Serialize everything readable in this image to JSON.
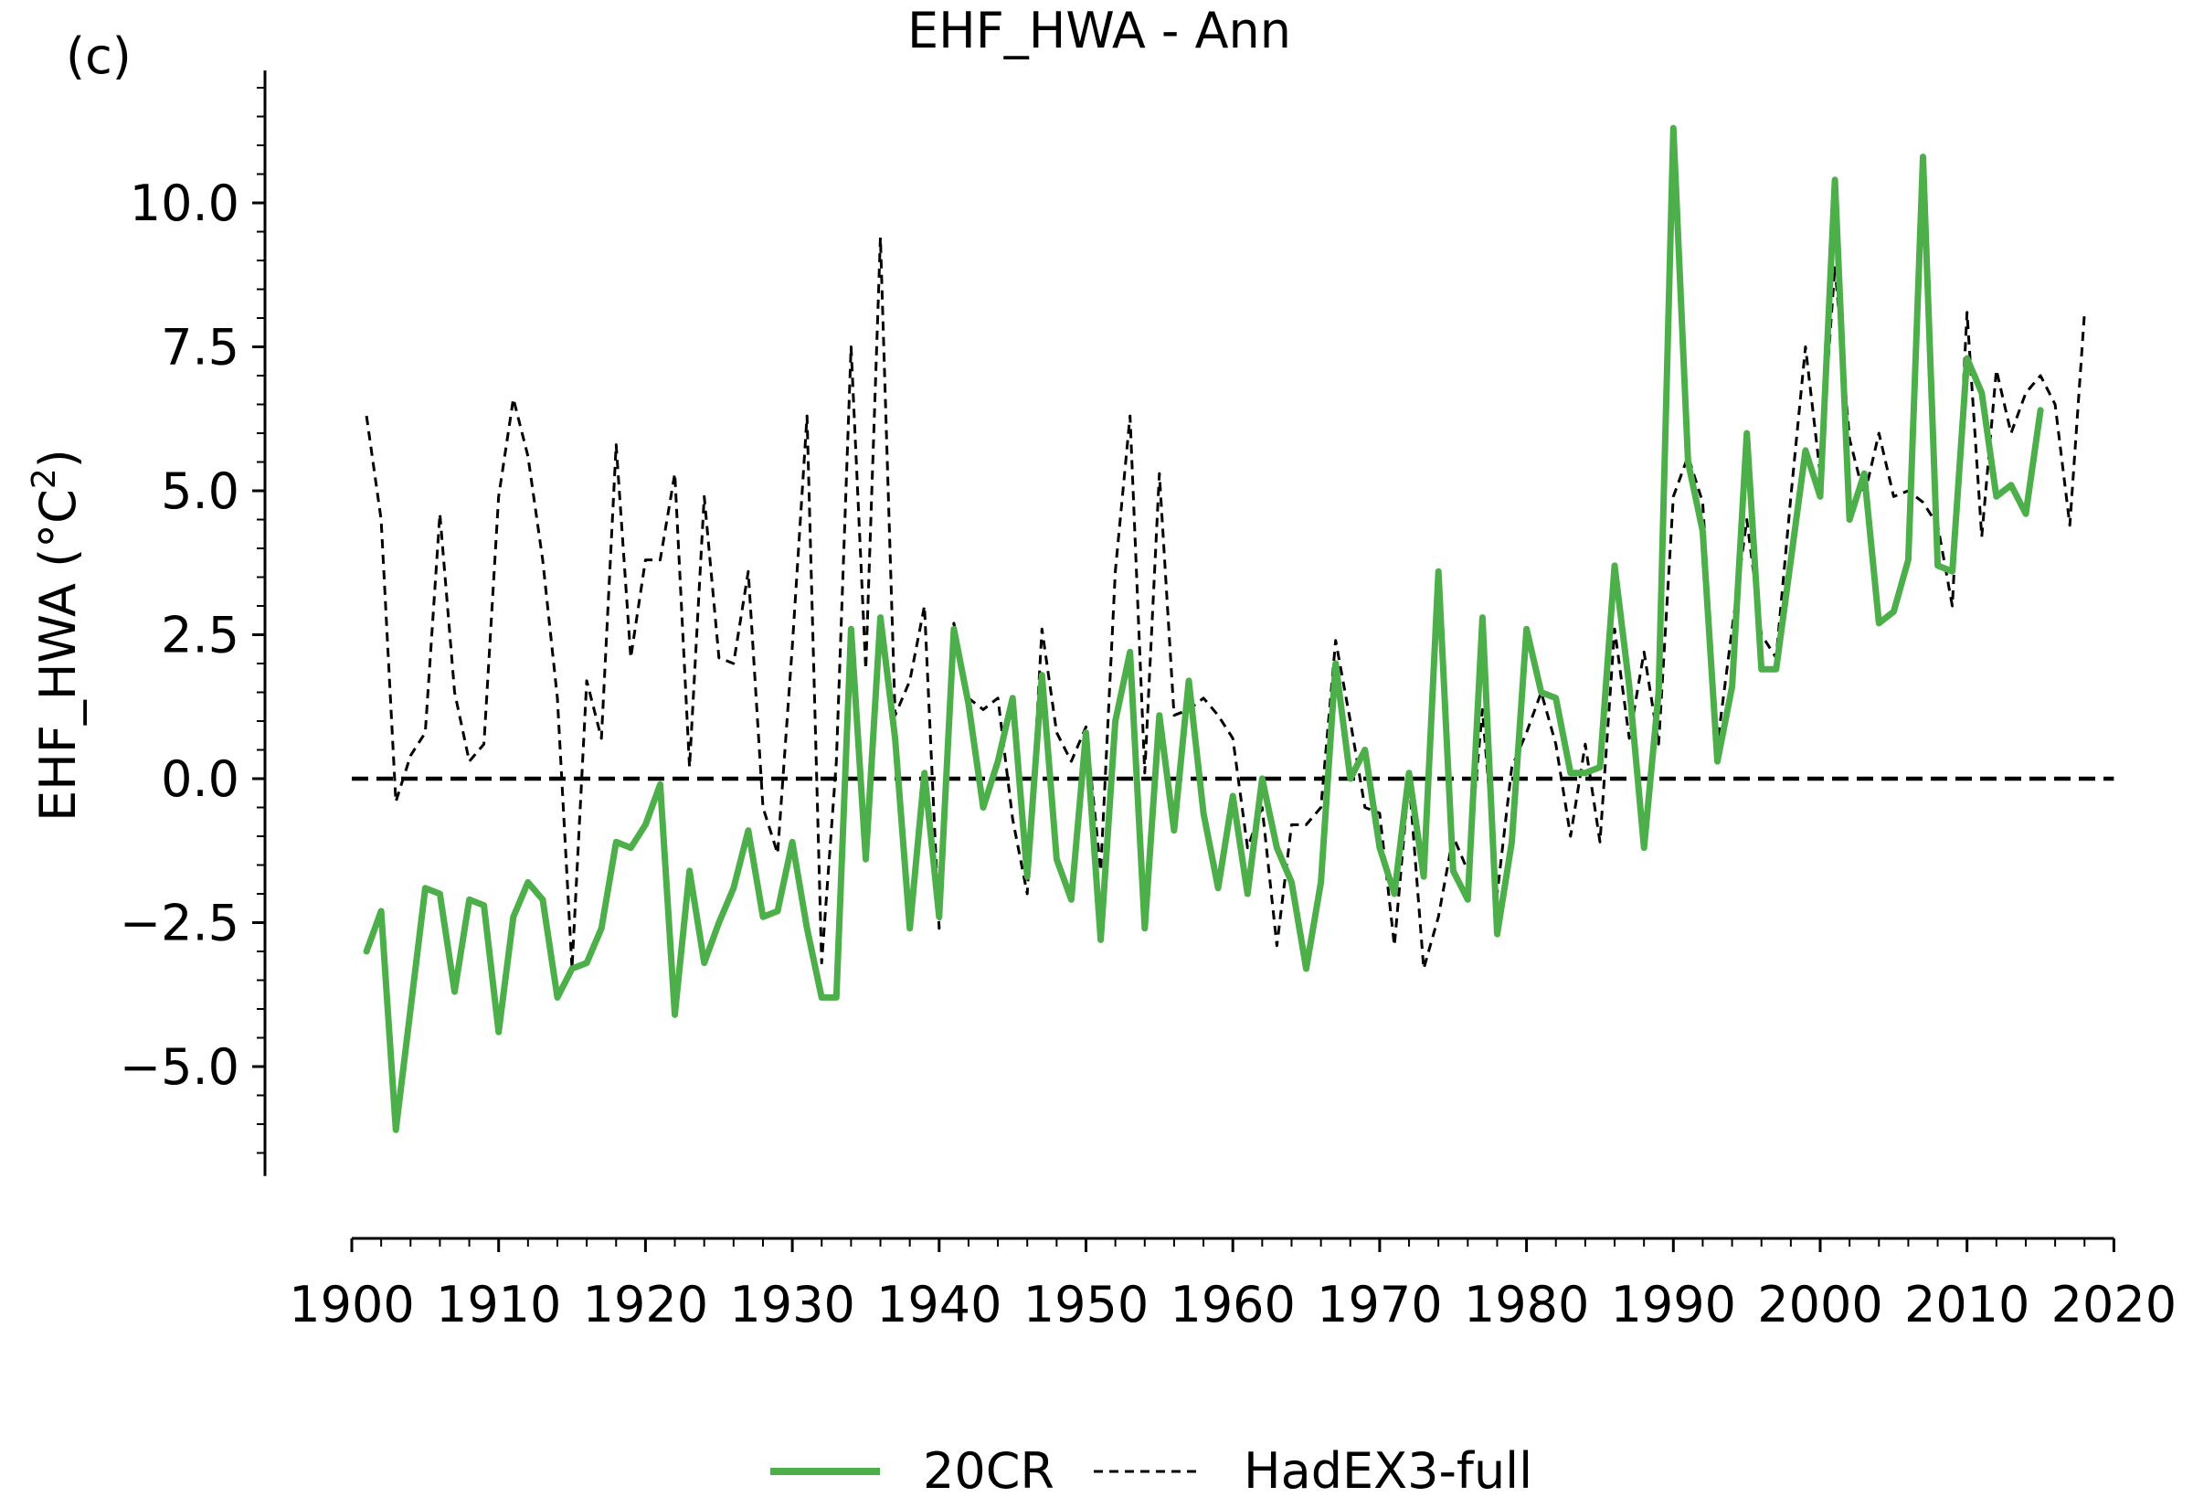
{
  "panel_label": "(c)",
  "colors": {
    "20CR": "#4daf4a",
    "HadEX3-full": "#000000",
    "zero_line": "#000000"
  },
  "chart_data": {
    "type": "line",
    "title": "EHF_HWA - Ann",
    "xlabel": "",
    "ylabel": "EHF_HWA (°C²)",
    "ylabel_base": "EHF_HWA (",
    "ylabel_unit": "°C",
    "ylabel_sup": "2",
    "ylabel_close": ")",
    "xlim": [
      1901,
      2020
    ],
    "ylim": [
      -6.9,
      12.3
    ],
    "xticks": [
      1900,
      1910,
      1920,
      1930,
      1940,
      1950,
      1960,
      1970,
      1980,
      1990,
      2000,
      2010,
      2020
    ],
    "xtick_labels": [
      "1900",
      "1910",
      "1920",
      "1930",
      "1940",
      "1950",
      "1960",
      "1970",
      "1980",
      "1990",
      "2000",
      "2010",
      "2020"
    ],
    "yticks": [
      -5.0,
      -2.5,
      0.0,
      2.5,
      5.0,
      7.5,
      10.0
    ],
    "ytick_labels": [
      "−5.0",
      "−2.5",
      "0.0",
      "2.5",
      "5.0",
      "7.5",
      "10.0"
    ],
    "reference_line": 0.0,
    "legend": {
      "placement": "bottom-center",
      "entries": [
        "20CR",
        "HadEX3-full"
      ]
    },
    "grid": false,
    "series": [
      {
        "name": "20CR",
        "style": "solid",
        "x": [
          1901,
          1902,
          1903,
          1904,
          1905,
          1906,
          1907,
          1908,
          1909,
          1910,
          1911,
          1912,
          1913,
          1914,
          1915,
          1916,
          1917,
          1918,
          1919,
          1920,
          1921,
          1922,
          1923,
          1924,
          1925,
          1926,
          1927,
          1928,
          1929,
          1930,
          1931,
          1932,
          1933,
          1934,
          1935,
          1936,
          1937,
          1938,
          1939,
          1940,
          1941,
          1942,
          1943,
          1944,
          1945,
          1946,
          1947,
          1948,
          1949,
          1950,
          1951,
          1952,
          1953,
          1954,
          1955,
          1956,
          1957,
          1958,
          1959,
          1960,
          1961,
          1962,
          1963,
          1964,
          1965,
          1966,
          1967,
          1968,
          1969,
          1970,
          1971,
          1972,
          1973,
          1974,
          1975,
          1976,
          1977,
          1978,
          1979,
          1980,
          1981,
          1982,
          1983,
          1984,
          1985,
          1986,
          1987,
          1988,
          1989,
          1990,
          1991,
          1992,
          1993,
          1994,
          1995,
          1996,
          1997,
          1998,
          1999,
          2000,
          2001,
          2002,
          2003,
          2004,
          2005,
          2006,
          2007,
          2008,
          2009,
          2010,
          2011,
          2012,
          2013,
          2014,
          2015
        ],
        "values": [
          -3.0,
          -2.3,
          -6.1,
          -4.0,
          -1.9,
          -2.0,
          -3.7,
          -2.1,
          -2.2,
          -4.4,
          -2.4,
          -1.8,
          -2.1,
          -3.8,
          -3.3,
          -3.2,
          -2.6,
          -1.1,
          -1.2,
          -0.8,
          -0.1,
          -4.1,
          -1.6,
          -3.2,
          -2.5,
          -1.9,
          -0.9,
          -2.4,
          -2.3,
          -1.1,
          -2.6,
          -3.8,
          -3.8,
          2.6,
          -1.4,
          2.8,
          0.7,
          -2.6,
          0.1,
          -2.4,
          2.6,
          1.3,
          -0.5,
          0.3,
          1.4,
          -1.7,
          1.8,
          -1.4,
          -2.1,
          0.8,
          -2.8,
          1.0,
          2.2,
          -2.6,
          1.1,
          -0.9,
          1.7,
          -0.6,
          -1.9,
          -0.3,
          -2.0,
          0.0,
          -1.2,
          -1.8,
          -3.3,
          -1.8,
          2.0,
          0.0,
          0.5,
          -1.2,
          -2.0,
          0.1,
          -1.7,
          3.6,
          -1.6,
          -2.1,
          2.8,
          -2.7,
          -1.1,
          2.6,
          1.5,
          1.4,
          0.1,
          0.1,
          0.2,
          3.7,
          1.6,
          -1.2,
          1.5,
          11.3,
          5.5,
          4.3,
          0.3,
          1.6,
          6.0,
          1.9,
          1.9,
          3.8,
          5.7,
          4.9,
          10.4,
          4.5,
          5.3,
          2.7,
          2.9,
          3.8,
          10.8,
          3.7,
          3.6,
          7.3,
          6.7,
          4.9,
          5.1,
          4.6,
          6.4
        ]
      },
      {
        "name": "HadEX3-full",
        "style": "dashed",
        "x": [
          1901,
          1902,
          1903,
          1904,
          1905,
          1906,
          1907,
          1908,
          1909,
          1910,
          1911,
          1912,
          1913,
          1914,
          1915,
          1916,
          1917,
          1918,
          1919,
          1920,
          1921,
          1922,
          1923,
          1924,
          1925,
          1926,
          1927,
          1928,
          1929,
          1930,
          1931,
          1932,
          1933,
          1934,
          1935,
          1936,
          1937,
          1938,
          1939,
          1940,
          1941,
          1942,
          1943,
          1944,
          1945,
          1946,
          1947,
          1948,
          1949,
          1950,
          1951,
          1952,
          1953,
          1954,
          1955,
          1956,
          1957,
          1958,
          1959,
          1960,
          1961,
          1962,
          1963,
          1964,
          1965,
          1966,
          1967,
          1968,
          1969,
          1970,
          1971,
          1972,
          1973,
          1974,
          1975,
          1976,
          1977,
          1978,
          1979,
          1980,
          1981,
          1982,
          1983,
          1984,
          1985,
          1986,
          1987,
          1988,
          1989,
          1990,
          1991,
          1992,
          1993,
          1994,
          1995,
          1996,
          1997,
          1998,
          1999,
          2000,
          2001,
          2002,
          2003,
          2004,
          2005,
          2006,
          2007,
          2008,
          2009,
          2010,
          2011,
          2012,
          2013,
          2014,
          2015,
          2016,
          2017,
          2018
        ],
        "values": [
          6.3,
          4.5,
          -0.4,
          0.4,
          0.8,
          4.6,
          1.5,
          0.3,
          0.6,
          4.9,
          6.6,
          5.6,
          3.8,
          1.4,
          -3.3,
          1.7,
          0.7,
          5.8,
          2.1,
          3.8,
          3.8,
          5.3,
          0.2,
          4.9,
          2.1,
          2.0,
          3.6,
          -0.5,
          -1.3,
          2.3,
          6.3,
          -3.2,
          0.3,
          7.5,
          1.9,
          9.4,
          1.1,
          1.7,
          3.0,
          -2.6,
          2.7,
          1.4,
          1.2,
          1.4,
          -0.7,
          -2.0,
          2.6,
          0.8,
          0.3,
          0.9,
          -1.6,
          3.6,
          6.3,
          0.1,
          5.3,
          1.1,
          1.2,
          1.4,
          1.1,
          0.7,
          -1.2,
          -0.5,
          -2.9,
          -0.8,
          -0.8,
          -0.5,
          2.4,
          1.0,
          -0.5,
          -0.6,
          -2.9,
          0.0,
          -3.3,
          -2.4,
          -1.0,
          -1.6,
          1.2,
          -2.0,
          0.2,
          0.8,
          1.5,
          0.6,
          -1.0,
          0.6,
          -1.1,
          2.6,
          0.7,
          2.2,
          0.6,
          4.9,
          5.6,
          4.8,
          0.6,
          2.6,
          4.5,
          2.5,
          2.1,
          4.9,
          7.5,
          5.3,
          8.9,
          5.9,
          4.9,
          6.0,
          4.9,
          5.0,
          4.8,
          4.4,
          3.0,
          8.1,
          4.2,
          7.1,
          6.0,
          6.7,
          7.0,
          6.5,
          4.4,
          8.1
        ]
      }
    ]
  }
}
